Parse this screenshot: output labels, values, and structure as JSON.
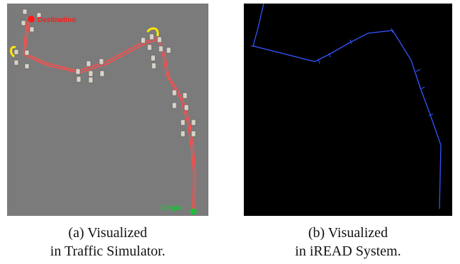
{
  "panel_a": {
    "destination_label": "Destination",
    "origin_label": "Origin",
    "colors": {
      "background": "#7b7b7b",
      "route": "#ff4d4d",
      "destination_marker": "#ff1a1a",
      "origin_marker": "#1fbf3a",
      "turn_arrow": "#ffe600",
      "intersection_light": "#d9d2c8"
    },
    "icons": [
      "destination-marker-icon",
      "origin-marker-icon",
      "turn-arrow-icon",
      "traffic-light-icon"
    ]
  },
  "panel_b": {
    "colors": {
      "background": "#000000",
      "route": "#3355ff"
    }
  },
  "captions": {
    "a_line1": "(a) Visualized",
    "a_line2": "in Traffic Simulator.",
    "b_line1": "(b) Visualized",
    "b_line2": "in iREAD System."
  }
}
